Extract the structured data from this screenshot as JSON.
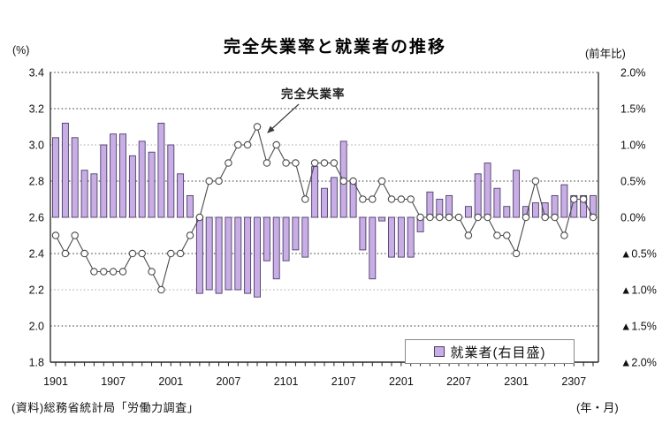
{
  "title": "完全失業率と就業者の推移",
  "left_axis_unit": "(%)",
  "right_axis_unit": "(前年比)",
  "x_axis_unit": "(年・月)",
  "source": "(資料)総務省統計局「労働力調査」",
  "annotation": "完全失業率",
  "legend": {
    "employment_label": "就業者(右目盛)"
  },
  "colors": {
    "bar_fill": "#c9aee6",
    "bar_border": "#4b3d68",
    "line": "#4a4a4a",
    "marker_fill": "#ffffff",
    "grid_dark": "#3c3c3c",
    "grid_light": "#a8a8a8",
    "axis": "#222222",
    "text": "#111111"
  },
  "chart_data": {
    "type": "combo",
    "x_tick_labels": [
      "1901",
      "1907",
      "2001",
      "2007",
      "2101",
      "2107",
      "2201",
      "2207",
      "2301",
      "2307"
    ],
    "categories": [
      "1901",
      "1902",
      "1903",
      "1904",
      "1905",
      "1906",
      "1907",
      "1908",
      "1909",
      "1910",
      "1911",
      "1912",
      "2001",
      "2002",
      "2003",
      "2004",
      "2005",
      "2006",
      "2007",
      "2008",
      "2009",
      "2010",
      "2011",
      "2012",
      "2101",
      "2102",
      "2103",
      "2104",
      "2105",
      "2106",
      "2107",
      "2108",
      "2109",
      "2110",
      "2111",
      "2112",
      "2201",
      "2202",
      "2203",
      "2204",
      "2205",
      "2206",
      "2207",
      "2208",
      "2209",
      "2210",
      "2211",
      "2212",
      "2301",
      "2302",
      "2303",
      "2304",
      "2305",
      "2306",
      "2307",
      "2308",
      "2309"
    ],
    "series": [
      {
        "name": "就業者(右目盛)",
        "type": "bar",
        "axis": "right",
        "unit": "%",
        "values": [
          1.1,
          1.3,
          1.1,
          0.65,
          0.6,
          1.0,
          1.15,
          1.15,
          0.85,
          1.05,
          0.9,
          1.3,
          1.0,
          0.6,
          0.3,
          -1.05,
          -1.0,
          -1.05,
          -1.0,
          -1.0,
          -1.05,
          -1.1,
          -0.6,
          -0.85,
          -0.6,
          -0.45,
          -0.55,
          0.7,
          0.4,
          0.55,
          1.05,
          0.5,
          -0.45,
          -0.85,
          -0.05,
          -0.55,
          -0.55,
          -0.55,
          -0.2,
          0.35,
          0.25,
          0.3,
          0.0,
          0.15,
          0.6,
          0.75,
          0.4,
          0.15,
          0.65,
          0.15,
          0.2,
          0.2,
          0.3,
          0.45,
          0.3,
          0.3,
          0.3
        ]
      },
      {
        "name": "完全失業率",
        "type": "line",
        "axis": "left",
        "unit": "%",
        "values": [
          2.5,
          2.4,
          2.5,
          2.4,
          2.3,
          2.3,
          2.3,
          2.3,
          2.4,
          2.4,
          2.3,
          2.2,
          2.4,
          2.4,
          2.5,
          2.6,
          2.8,
          2.8,
          2.9,
          3.0,
          3.0,
          3.1,
          2.9,
          3.0,
          2.9,
          2.9,
          2.7,
          2.9,
          2.9,
          2.9,
          2.8,
          2.8,
          2.7,
          2.7,
          2.8,
          2.7,
          2.7,
          2.7,
          2.6,
          2.6,
          2.6,
          2.6,
          2.6,
          2.5,
          2.6,
          2.6,
          2.5,
          2.5,
          2.4,
          2.6,
          2.8,
          2.6,
          2.6,
          2.5,
          2.7,
          2.7,
          2.6
        ]
      }
    ],
    "left_axis": {
      "min": 1.8,
      "max": 3.4,
      "step": 0.2,
      "tick_labels": [
        "3.4",
        "3.2",
        "3.0",
        "2.8",
        "2.6",
        "2.4",
        "2.2",
        "2.0",
        "1.8"
      ]
    },
    "right_axis": {
      "min": -2.0,
      "max": 2.0,
      "step": 0.5,
      "tick_labels": [
        "2.0%",
        "1.5%",
        "1.0%",
        "0.5%",
        "0.0%",
        "▲0.5%",
        "▲1.0%",
        "▲1.5%",
        "▲2.0%"
      ]
    },
    "baseline_left_value": 2.6,
    "grid": true,
    "legend_position": "inside-bottom-right"
  }
}
